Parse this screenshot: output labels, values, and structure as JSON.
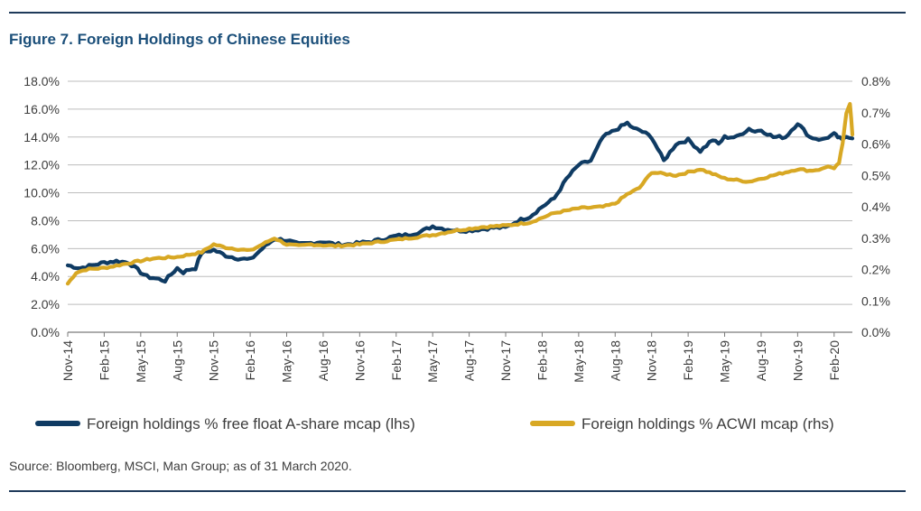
{
  "title": "Figure 7. Foreign Holdings of Chinese Equities",
  "source": "Source: Bloomberg, MSCI, Man Group; as of 31 March 2020.",
  "colors": {
    "lhs_series": "#0f3b63",
    "rhs_series": "#d8a824",
    "rule": "#1f3a5a",
    "title": "#1b4f7a"
  },
  "chart_data": {
    "type": "line",
    "title": "Figure 7. Foreign Holdings of Chinese Equities",
    "x_ticks": [
      "Nov-14",
      "Feb-15",
      "May-15",
      "Aug-15",
      "Nov-15",
      "Feb-16",
      "May-16",
      "Aug-16",
      "Nov-16",
      "Feb-17",
      "May-17",
      "Aug-17",
      "Nov-17",
      "Feb-18",
      "May-18",
      "Aug-18",
      "Nov-18",
      "Feb-19",
      "May-19",
      "Aug-19",
      "Nov-19",
      "Feb-20"
    ],
    "y_left_ticks": [
      "0.0%",
      "2.0%",
      "4.0%",
      "6.0%",
      "8.0%",
      "10.0%",
      "12.0%",
      "14.0%",
      "16.0%",
      "18.0%"
    ],
    "y_right_ticks": [
      "0.0%",
      "0.1%",
      "0.2%",
      "0.3%",
      "0.4%",
      "0.5%",
      "0.6%",
      "0.7%",
      "0.8%"
    ],
    "y_left_range": [
      0,
      18
    ],
    "y_right_range": [
      0,
      0.8
    ],
    "x_unit": "months since Nov-14",
    "x_range": [
      0,
      64.5
    ],
    "series": [
      {
        "name": "Foreign holdings % free float A-share mcap (lhs)",
        "axis": "left",
        "x": [
          0,
          1,
          2,
          3,
          4,
          5,
          6,
          6.5,
          7,
          8,
          9,
          9.5,
          10,
          10.5,
          11,
          12,
          13,
          14,
          15,
          15.5,
          16,
          17,
          18,
          19,
          20,
          21,
          22,
          23,
          24,
          25,
          26,
          27,
          28,
          29,
          30,
          31,
          32,
          33,
          34,
          35,
          36,
          37,
          38,
          39,
          40,
          41,
          42,
          43,
          44,
          45,
          46,
          46.5,
          47,
          48,
          49,
          50,
          51,
          52,
          53,
          53.5,
          54,
          55,
          56,
          56.5,
          57,
          58,
          59,
          60,
          61,
          62,
          63,
          63.3,
          63.6,
          64,
          64.5
        ],
        "values": [
          4.8,
          4.6,
          4.8,
          5.0,
          5.1,
          5.0,
          4.3,
          4.0,
          3.9,
          3.7,
          4.6,
          4.3,
          4.5,
          4.6,
          5.7,
          5.9,
          5.5,
          5.3,
          5.2,
          5.6,
          6.0,
          6.7,
          6.6,
          6.3,
          6.4,
          6.5,
          6.3,
          6.3,
          6.4,
          6.5,
          6.7,
          6.9,
          7.0,
          7.2,
          7.6,
          7.4,
          7.3,
          7.3,
          7.4,
          7.5,
          7.5,
          8.0,
          8.3,
          9.0,
          9.6,
          11.0,
          12.0,
          12.3,
          14.0,
          14.5,
          15.0,
          14.6,
          14.5,
          14.0,
          12.3,
          13.5,
          13.8,
          13.0,
          13.8,
          13.5,
          14.0,
          14.0,
          14.6,
          14.4,
          14.5,
          14.0,
          14.0,
          15.0,
          14.0,
          13.8,
          14.2,
          14.0,
          13.8,
          14.1,
          13.9
        ]
      },
      {
        "name": "Foreign holdings % ACWI mcap (rhs)",
        "axis": "right",
        "x": [
          0,
          0.7,
          1.5,
          3,
          5,
          7,
          9,
          11,
          12,
          13,
          15,
          16,
          17,
          18,
          19,
          20,
          22,
          24,
          26,
          28,
          30,
          32,
          34,
          36,
          38,
          40,
          42,
          44,
          45,
          46,
          47,
          48,
          50,
          52,
          54,
          56,
          58,
          60,
          61,
          62,
          62.5,
          63,
          63.4,
          63.7,
          64,
          64.3,
          64.5
        ],
        "values": [
          0.155,
          0.19,
          0.2,
          0.205,
          0.22,
          0.235,
          0.24,
          0.255,
          0.28,
          0.27,
          0.26,
          0.28,
          0.3,
          0.28,
          0.275,
          0.28,
          0.275,
          0.28,
          0.29,
          0.3,
          0.31,
          0.325,
          0.335,
          0.34,
          0.35,
          0.38,
          0.395,
          0.4,
          0.41,
          0.44,
          0.46,
          0.51,
          0.5,
          0.52,
          0.49,
          0.48,
          0.5,
          0.52,
          0.515,
          0.52,
          0.53,
          0.52,
          0.54,
          0.6,
          0.7,
          0.73,
          0.63
        ]
      }
    ],
    "legend_position": "bottom"
  }
}
